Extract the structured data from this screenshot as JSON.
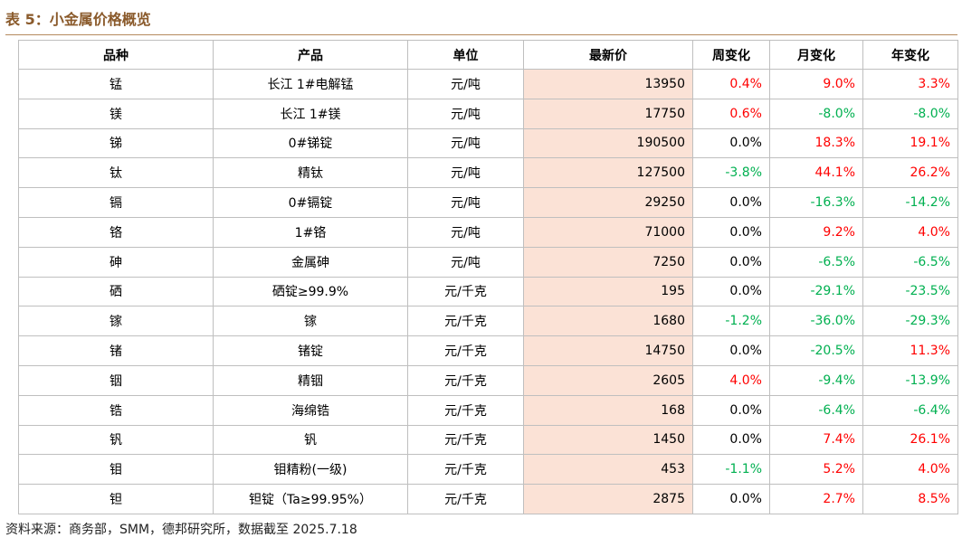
{
  "header": {
    "title": "表 5：小金属价格概览"
  },
  "table": {
    "columns": [
      "品种",
      "产品",
      "单位",
      "最新价",
      "周变化",
      "月变化",
      "年变化"
    ],
    "rows": [
      [
        "锰",
        "长江 1#电解锰",
        "元/吨",
        13950,
        "0.4%",
        "9.0%",
        "3.3%"
      ],
      [
        "镁",
        "长江 1#镁",
        "元/吨",
        17750,
        "0.6%",
        "-8.0%",
        "-8.0%"
      ],
      [
        "锑",
        "0#锑锭",
        "元/吨",
        190500,
        "0.0%",
        "18.3%",
        "19.1%"
      ],
      [
        "钛",
        "精钛",
        "元/吨",
        127500,
        "-3.8%",
        "44.1%",
        "26.2%"
      ],
      [
        "镉",
        "0#镉锭",
        "元/吨",
        29250,
        "0.0%",
        "-16.3%",
        "-14.2%"
      ],
      [
        "铬",
        "1#铬",
        "元/吨",
        71000,
        "0.0%",
        "9.2%",
        "4.0%"
      ],
      [
        "砷",
        "金属砷",
        "元/吨",
        7250,
        "0.0%",
        "-6.5%",
        "-6.5%"
      ],
      [
        "硒",
        "硒锭≥99.9%",
        "元/千克",
        195,
        "0.0%",
        "-29.1%",
        "-23.5%"
      ],
      [
        "镓",
        "镓",
        "元/千克",
        1680,
        "-1.2%",
        "-36.0%",
        "-29.3%"
      ],
      [
        "锗",
        "锗锭",
        "元/千克",
        14750,
        "0.0%",
        "-20.5%",
        "11.3%"
      ],
      [
        "铟",
        "精铟",
        "元/千克",
        2605,
        "4.0%",
        "-9.4%",
        "-13.9%"
      ],
      [
        "锆",
        "海绵锆",
        "元/千克",
        168,
        "0.0%",
        "-6.4%",
        "-6.4%"
      ],
      [
        "钒",
        "钒",
        "元/千克",
        1450,
        "0.0%",
        "7.4%",
        "26.1%"
      ],
      [
        "钼",
        "钼精粉(一级)",
        "元/千克",
        453,
        "-1.1%",
        "5.2%",
        "4.0%"
      ],
      [
        "钽",
        "钽锭（Ta≥99.95%）",
        "元/千克",
        2875,
        "0.0%",
        "2.7%",
        "8.5%"
      ]
    ]
  },
  "footer": {
    "source": "资料来源：商务部，SMM，德邦研究所，数据截至 2025.7.18"
  }
}
